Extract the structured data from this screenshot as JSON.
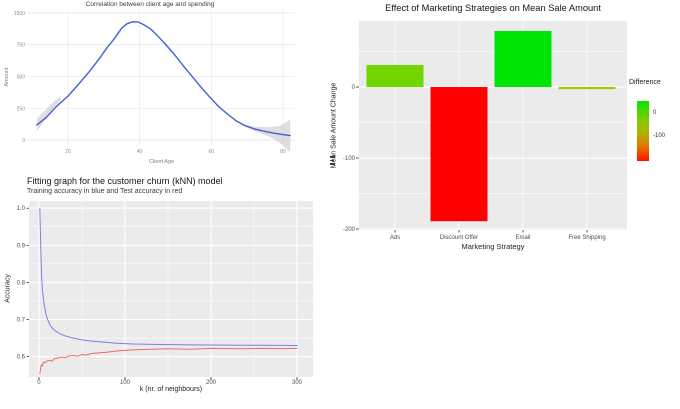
{
  "chart_data": [
    {
      "id": "age-spending",
      "type": "line",
      "title": "Correlation between client age and spending",
      "xlabel": "Client Age",
      "ylabel": "Amount",
      "x_tick_vals": [
        20,
        40,
        60,
        80
      ],
      "x_tick_labels": [
        "20",
        "40",
        "60",
        "80"
      ],
      "y_tick_vals": [
        0,
        250,
        500,
        750,
        1000
      ],
      "y_tick_labels": [
        "0",
        "250",
        "500",
        "750",
        "1000"
      ],
      "xlim": [
        8.85,
        83.35
      ],
      "ylim": [
        -39,
        1023
      ],
      "grid": "on",
      "line_color": "#4060d8",
      "ribbon_color": "#c2c2c2",
      "points": [
        [
          11.3,
          118
        ],
        [
          14,
          180
        ],
        [
          17,
          270
        ],
        [
          20,
          346
        ],
        [
          23,
          440
        ],
        [
          26,
          540
        ],
        [
          29,
          650
        ],
        [
          31,
          730
        ],
        [
          33,
          800
        ],
        [
          35,
          880
        ],
        [
          36.5,
          915
        ],
        [
          38,
          930
        ],
        [
          39.5,
          929
        ],
        [
          41,
          910
        ],
        [
          43,
          875
        ],
        [
          45,
          820
        ],
        [
          47,
          760
        ],
        [
          49.5,
          680
        ],
        [
          52,
          590
        ],
        [
          54.5,
          505
        ],
        [
          57,
          420
        ],
        [
          59.5,
          340
        ],
        [
          62,
          265
        ],
        [
          64.5,
          205
        ],
        [
          67,
          150
        ],
        [
          69.5,
          113
        ],
        [
          72,
          88
        ],
        [
          74.5,
          70
        ],
        [
          77,
          57
        ],
        [
          79.5,
          45
        ],
        [
          82,
          35
        ]
      ],
      "ribbon_end": [
        [
          67.4,
          130,
          130
        ],
        [
          72,
          70,
          105
        ],
        [
          76,
          30,
          100
        ],
        [
          79,
          -20,
          110
        ],
        [
          82,
          -95,
          160
        ]
      ],
      "ribbon_start": [
        [
          11.3,
          70,
          165
        ],
        [
          13.5,
          150,
          230
        ],
        [
          16,
          250,
          300
        ],
        [
          18,
          320,
          345
        ]
      ]
    },
    {
      "id": "knn-fitting",
      "type": "line",
      "title": "Fitting graph for the customer churn (kNN) model",
      "subtitle": "Training accuracy in blue and Test accuracy in red",
      "xlabel": "k (nr. of neighbours)",
      "ylabel": "Accuracy",
      "x_tick_vals": [
        0,
        100,
        200,
        300
      ],
      "x_tick_labels": [
        "0",
        "100",
        "200",
        "300"
      ],
      "x_minor_vals": [
        50,
        150,
        250
      ],
      "y_tick_vals": [
        0.6,
        0.7,
        0.8,
        0.9,
        1.0
      ],
      "y_tick_labels": [
        "0.6",
        "0.7",
        "0.8",
        "0.9",
        "1.0"
      ],
      "y_minor_vals": [
        0.65,
        0.75,
        0.85,
        0.95
      ],
      "xlim": [
        -11.6,
        318.6
      ],
      "ylim": [
        0.545,
        1.0195
      ],
      "panel_bg": "#ebebeb",
      "grid": "on",
      "legend_position": "none",
      "series": [
        {
          "name": "Training accuracy",
          "color": "#7b80e4",
          "points": [
            [
              1,
              1.0
            ],
            [
              2,
              0.9
            ],
            [
              3,
              0.82
            ],
            [
              4,
              0.78
            ],
            [
              5,
              0.76
            ],
            [
              6,
              0.74
            ],
            [
              8,
              0.715
            ],
            [
              10,
              0.7
            ],
            [
              13,
              0.685
            ],
            [
              16,
              0.675
            ],
            [
              20,
              0.668
            ],
            [
              25,
              0.661
            ],
            [
              30,
              0.656
            ],
            [
              40,
              0.65
            ],
            [
              50,
              0.645
            ],
            [
              60,
              0.642
            ],
            [
              75,
              0.639
            ],
            [
              90,
              0.636
            ],
            [
              110,
              0.634
            ],
            [
              140,
              0.6325
            ],
            [
              180,
              0.6315
            ],
            [
              220,
              0.631
            ],
            [
              260,
              0.6305
            ],
            [
              300,
              0.63
            ]
          ]
        },
        {
          "name": "Test accuracy",
          "color": "#ea6c6c",
          "points": [
            [
              1,
              0.553
            ],
            [
              2,
              0.57
            ],
            [
              3,
              0.578
            ],
            [
              4,
              0.574
            ],
            [
              5,
              0.585
            ],
            [
              7,
              0.583
            ],
            [
              9,
              0.588
            ],
            [
              12,
              0.59
            ],
            [
              15,
              0.588
            ],
            [
              18,
              0.594
            ],
            [
              22,
              0.596
            ],
            [
              26,
              0.599
            ],
            [
              30,
              0.597
            ],
            [
              35,
              0.602
            ],
            [
              40,
              0.603
            ],
            [
              45,
              0.601
            ],
            [
              50,
              0.606
            ],
            [
              55,
              0.604
            ],
            [
              60,
              0.608
            ],
            [
              70,
              0.61
            ],
            [
              80,
              0.612
            ],
            [
              90,
              0.615
            ],
            [
              100,
              0.617
            ],
            [
              115,
              0.619
            ],
            [
              130,
              0.62
            ],
            [
              150,
              0.621
            ],
            [
              175,
              0.62
            ],
            [
              200,
              0.622
            ],
            [
              230,
              0.621
            ],
            [
              260,
              0.622
            ],
            [
              280,
              0.6215
            ],
            [
              300,
              0.622
            ]
          ]
        }
      ]
    },
    {
      "id": "marketing-bars",
      "type": "bar",
      "title": "Effect of Marketing Strategies on Mean Sale Amount",
      "xlabel": "Marketing Strategy",
      "ylabel": "Mean Sale Amount Change",
      "categories": [
        "Ads",
        "Discount Offer",
        "Email",
        "Free Shipping"
      ],
      "values": [
        31,
        -189,
        79,
        -3
      ],
      "bar_colors": [
        "#72d400",
        "#ff0000",
        "#00e405",
        "#a9c400"
      ],
      "y_tick_vals": [
        0,
        -100,
        -200
      ],
      "y_tick_labels": [
        "0",
        "-100",
        "-200"
      ],
      "y_minor_vals": [
        50,
        -50,
        -150
      ],
      "ylim": [
        -201.4,
        93
      ],
      "panel_bg": "#ebebeb",
      "grid": "on",
      "legend": {
        "title": "Difference",
        "position": "right",
        "tick_labels": [
          "0",
          "-100"
        ],
        "gradient_top_color": "#0be300",
        "gradient_bottom_color": "#ff0f00"
      }
    }
  ]
}
